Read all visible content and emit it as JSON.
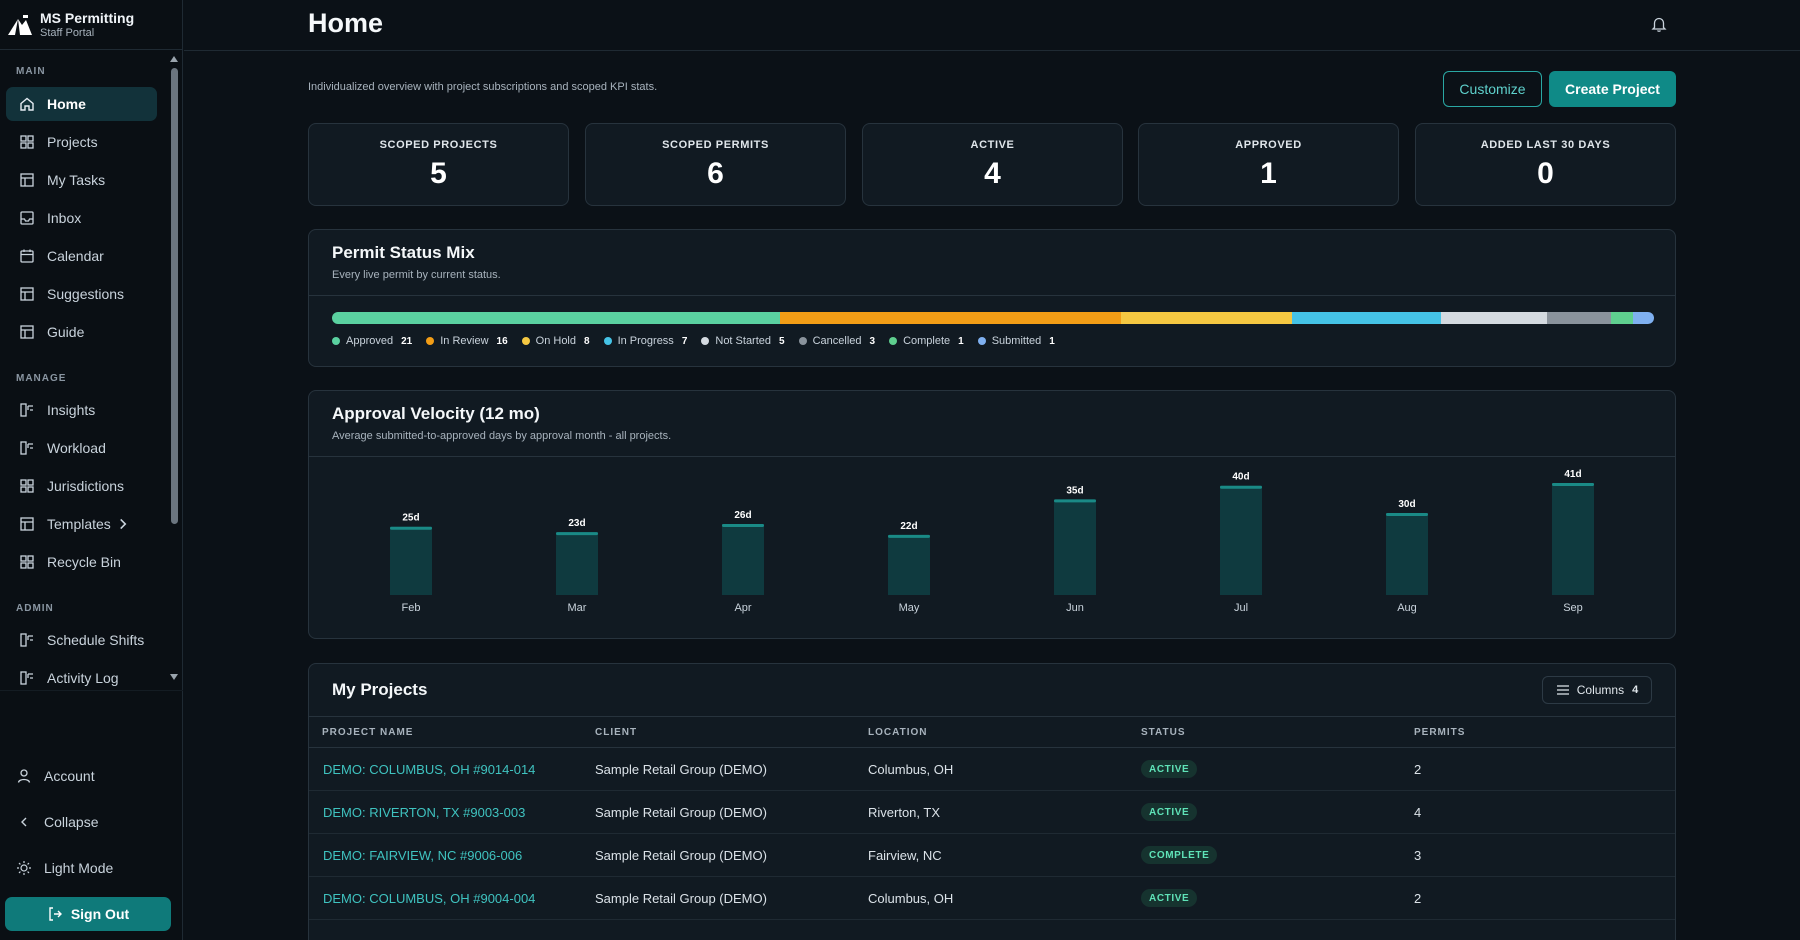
{
  "brand": {
    "title": "MS Permitting",
    "subtitle": "Staff Portal"
  },
  "sidebar": {
    "sections": {
      "main": "MAIN",
      "manage": "MANAGE",
      "admin": "ADMIN"
    },
    "main_items": [
      {
        "label": "Home",
        "icon": "home-icon",
        "active": true
      },
      {
        "label": "Projects",
        "icon": "grid-icon"
      },
      {
        "label": "My Tasks",
        "icon": "layout-icon"
      },
      {
        "label": "Inbox",
        "icon": "inbox-icon"
      },
      {
        "label": "Calendar",
        "icon": "calendar-icon"
      },
      {
        "label": "Suggestions",
        "icon": "layout-icon"
      },
      {
        "label": "Guide",
        "icon": "layout-icon"
      }
    ],
    "manage_items": [
      {
        "label": "Insights",
        "icon": "chart-icon"
      },
      {
        "label": "Workload",
        "icon": "chart-icon"
      },
      {
        "label": "Jurisdictions",
        "icon": "grid-icon"
      },
      {
        "label": "Templates",
        "icon": "layout-icon"
      },
      {
        "label": "Recycle Bin",
        "icon": "grid-icon"
      }
    ],
    "admin_items": [
      {
        "label": "Schedule Shifts",
        "icon": "chart-icon"
      },
      {
        "label": "Activity Log",
        "icon": "chart-icon"
      }
    ],
    "bottom": {
      "account": "Account",
      "collapse": "Collapse",
      "light_mode": "Light Mode",
      "sign_out": "Sign Out"
    }
  },
  "header": {
    "title": "Home"
  },
  "main": {
    "subtitle": "Individualized overview with project subscriptions and scoped KPI stats.",
    "customize_label": "Customize",
    "create_label": "Create Project"
  },
  "kpis": [
    {
      "label": "SCOPED PROJECTS",
      "value": "5"
    },
    {
      "label": "SCOPED PERMITS",
      "value": "6"
    },
    {
      "label": "ACTIVE",
      "value": "4"
    },
    {
      "label": "APPROVED",
      "value": "1"
    },
    {
      "label": "ADDED LAST 30 DAYS",
      "value": "0"
    }
  ],
  "status_mix": {
    "title": "Permit Status Mix",
    "subtitle": "Every live permit by current status.",
    "items": [
      {
        "label": "Approved",
        "count": 21,
        "color": "#5ad1a0"
      },
      {
        "label": "In Review",
        "count": 16,
        "color": "#f29d16"
      },
      {
        "label": "On Hold",
        "count": 8,
        "color": "#f5c842"
      },
      {
        "label": "In Progress",
        "count": 7,
        "color": "#45c3e6"
      },
      {
        "label": "Not Started",
        "count": 5,
        "color": "#d4dae0"
      },
      {
        "label": "Cancelled",
        "count": 3,
        "color": "#8a939c"
      },
      {
        "label": "Complete",
        "count": 1,
        "color": "#5fcf8f"
      },
      {
        "label": "Submitted",
        "count": 1,
        "color": "#7fb0f0"
      }
    ]
  },
  "velocity": {
    "title": "Approval Velocity (12 mo)",
    "subtitle": "Average submitted-to-approved days by approval month - all projects."
  },
  "chart_data": {
    "type": "bar",
    "title": "Approval Velocity (12 mo)",
    "subtitle": "Average submitted-to-approved days by approval month - all projects.",
    "categories": [
      "Feb",
      "Mar",
      "Apr",
      "May",
      "Jun",
      "Jul",
      "Aug",
      "Sep"
    ],
    "values": [
      25,
      23,
      26,
      22,
      35,
      40,
      30,
      41
    ],
    "labels": [
      "25d",
      "23d",
      "26d",
      "22d",
      "35d",
      "40d",
      "30d",
      "41d"
    ],
    "unit": "d",
    "bar_color": "#0f3a3f",
    "bar_top_color": "#1a8a86",
    "grid": false,
    "legend": "none"
  },
  "projects": {
    "title": "My Projects",
    "columns_label": "Columns",
    "columns_count": "4",
    "headers": [
      "PROJECT NAME",
      "CLIENT",
      "LOCATION",
      "STATUS",
      "PERMITS"
    ],
    "rows": [
      {
        "name": "DEMO: COLUMBUS, OH #9014-014",
        "client": "Sample Retail Group (DEMO)",
        "location": "Columbus, OH",
        "status": "ACTIVE",
        "permits": "2"
      },
      {
        "name": "DEMO: RIVERTON, TX #9003-003",
        "client": "Sample Retail Group (DEMO)",
        "location": "Riverton, TX",
        "status": "ACTIVE",
        "permits": "4"
      },
      {
        "name": "DEMO: FAIRVIEW, NC #9006-006",
        "client": "Sample Retail Group (DEMO)",
        "location": "Fairview, NC",
        "status": "COMPLETE",
        "permits": "3"
      },
      {
        "name": "DEMO: COLUMBUS, OH #9004-004",
        "client": "Sample Retail Group (DEMO)",
        "location": "Columbus, OH",
        "status": "ACTIVE",
        "permits": "2"
      }
    ]
  }
}
